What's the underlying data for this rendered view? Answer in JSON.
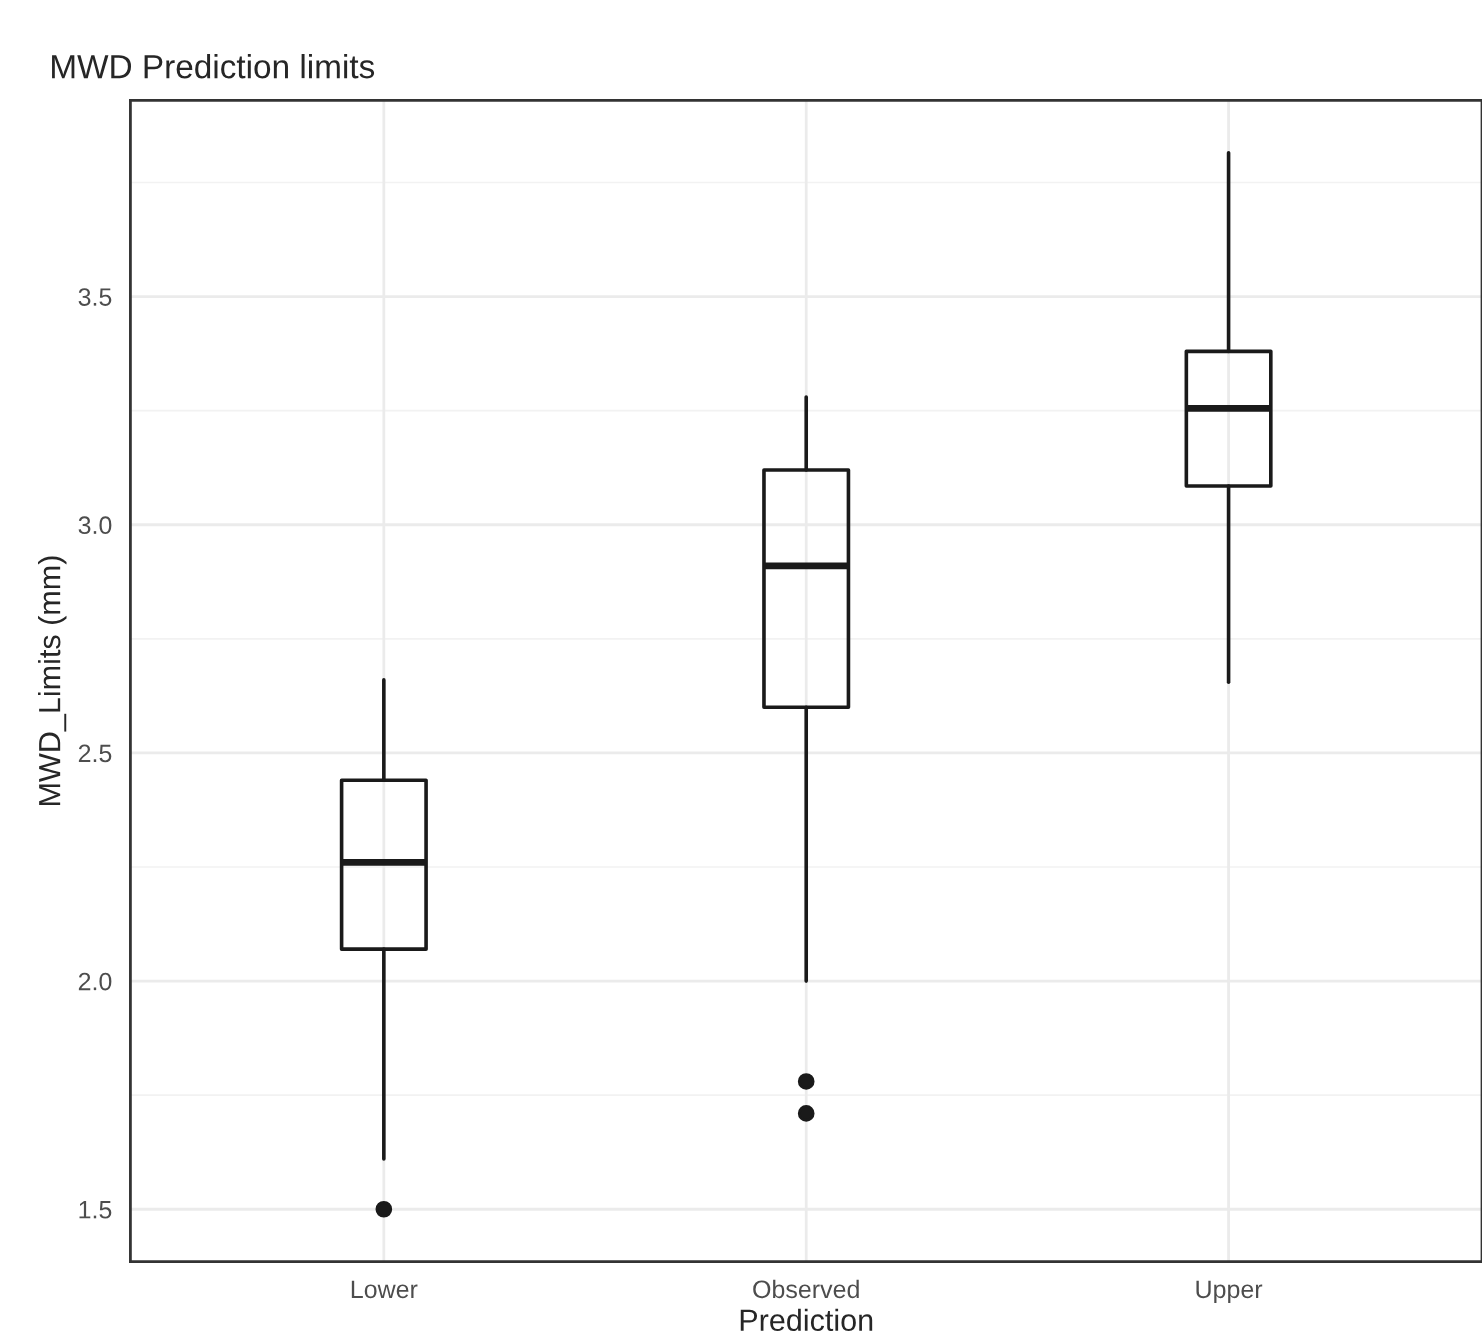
{
  "chart_data": {
    "type": "box",
    "title": "MWD Prediction limits",
    "xlabel": "Prediction",
    "ylabel": "MWD_Limits (mm)",
    "categories": [
      "Lower",
      "Observed",
      "Upper"
    ],
    "boxes": [
      {
        "low": 1.61,
        "q1": 2.07,
        "median": 2.26,
        "q3": 2.44,
        "high": 2.66,
        "outliers": [
          1.5
        ]
      },
      {
        "low": 2.0,
        "q1": 2.6,
        "median": 2.91,
        "q3": 3.12,
        "high": 3.28,
        "outliers": [
          1.78,
          1.71
        ]
      },
      {
        "low": 2.655,
        "q1": 3.085,
        "median": 3.255,
        "q3": 3.38,
        "high": 3.815
      }
    ],
    "ylim": [
      1.385,
      3.93
    ],
    "yticks": [
      {
        "value": 1.5,
        "label": "1.5"
      },
      {
        "value": 2.0,
        "label": "2.0"
      },
      {
        "value": 2.5,
        "label": "2.5"
      },
      {
        "value": 3.0,
        "label": "3.0"
      },
      {
        "value": 3.5,
        "label": "3.5"
      }
    ],
    "grid": true,
    "legend": false
  }
}
